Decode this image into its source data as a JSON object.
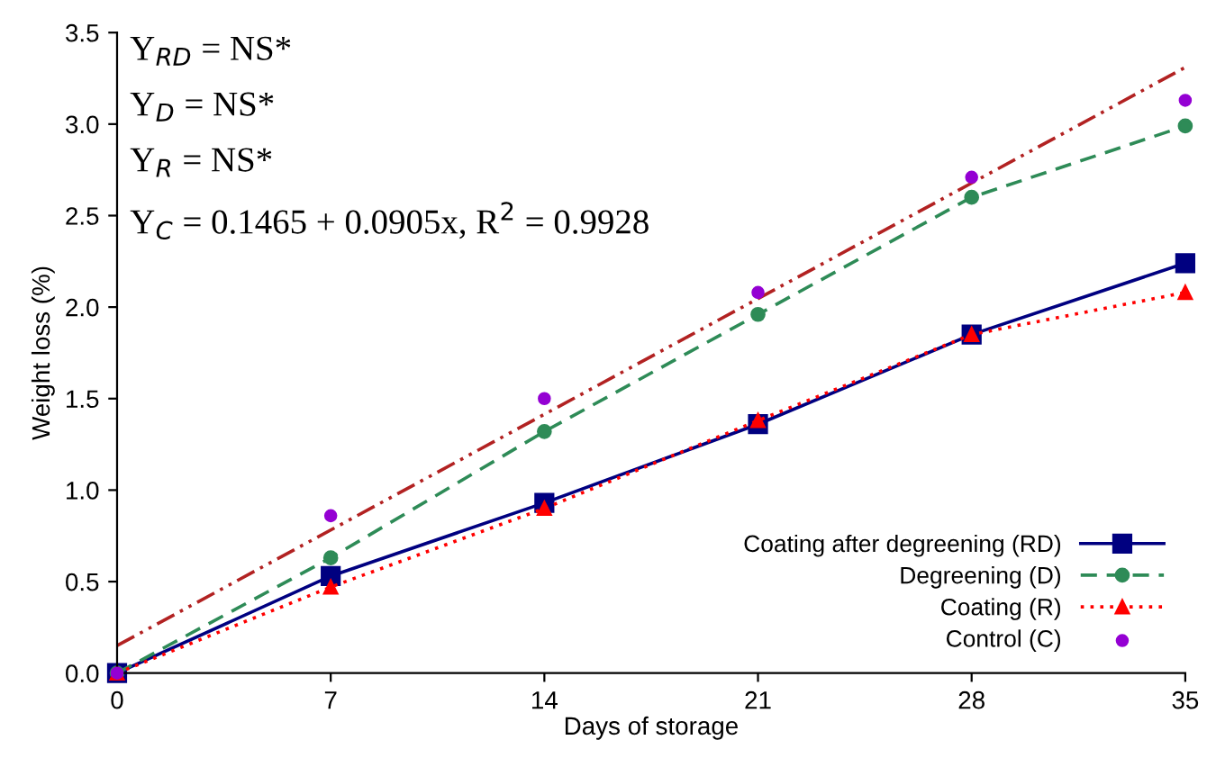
{
  "chart_data": {
    "type": "line",
    "xlabel": "Days of storage",
    "ylabel": "Weight loss (%)",
    "xlim": [
      0,
      35
    ],
    "xticks": [
      0,
      7,
      14,
      21,
      28,
      35
    ],
    "ylim": [
      0,
      3.5
    ],
    "yticks": [
      {
        "value": 0,
        "label": "0.0"
      },
      {
        "value": 0.5,
        "label": "0.5"
      },
      {
        "value": 1,
        "label": "1.0"
      },
      {
        "value": 1.5,
        "label": "1.5"
      },
      {
        "value": 2,
        "label": "2.0"
      },
      {
        "value": 2.5,
        "label": "2.5"
      },
      {
        "value": 3,
        "label": "3.0"
      },
      {
        "value": 3.5,
        "label": "3.5"
      }
    ],
    "x": [
      0,
      7,
      14,
      21,
      28,
      35
    ],
    "series": [
      {
        "name": "Coating after degreening (RD)",
        "color": "#000080",
        "marker": "square",
        "line_style": "solid",
        "values": [
          0,
          0.53,
          0.93,
          1.36,
          1.85,
          2.24
        ]
      },
      {
        "name": "Degreening (D)",
        "color": "#2e8b57",
        "marker": "circle",
        "line_style": "dashed",
        "values": [
          0,
          0.63,
          1.32,
          1.96,
          2.6,
          2.99
        ]
      },
      {
        "name": "Coating (R)",
        "color": "#ff0000",
        "marker": "triangle",
        "line_style": "dotted",
        "values": [
          0,
          0.47,
          0.9,
          1.38,
          1.85,
          2.08
        ]
      },
      {
        "name": "Control (C)",
        "type": "scatter",
        "color": "#9400d3",
        "marker": "circle",
        "values": [
          0,
          0.86,
          1.5,
          2.08,
          2.71,
          3.13
        ]
      },
      {
        "color": "#b22222",
        "marker": "none",
        "line_style": "dashdot",
        "x": [
          0,
          35
        ],
        "values": [
          0.15,
          3.31
        ]
      }
    ],
    "annotations": [
      "Y$_{RD}$ = NS*",
      "Y$_{D}$ = NS*",
      "Y$_{R}$ = NS*",
      "Y$_{C}$ = 0.1465 + 0.0905x, R$^{2}$ = 0.9928"
    ],
    "legend": "bottom right",
    "grid": false
  }
}
